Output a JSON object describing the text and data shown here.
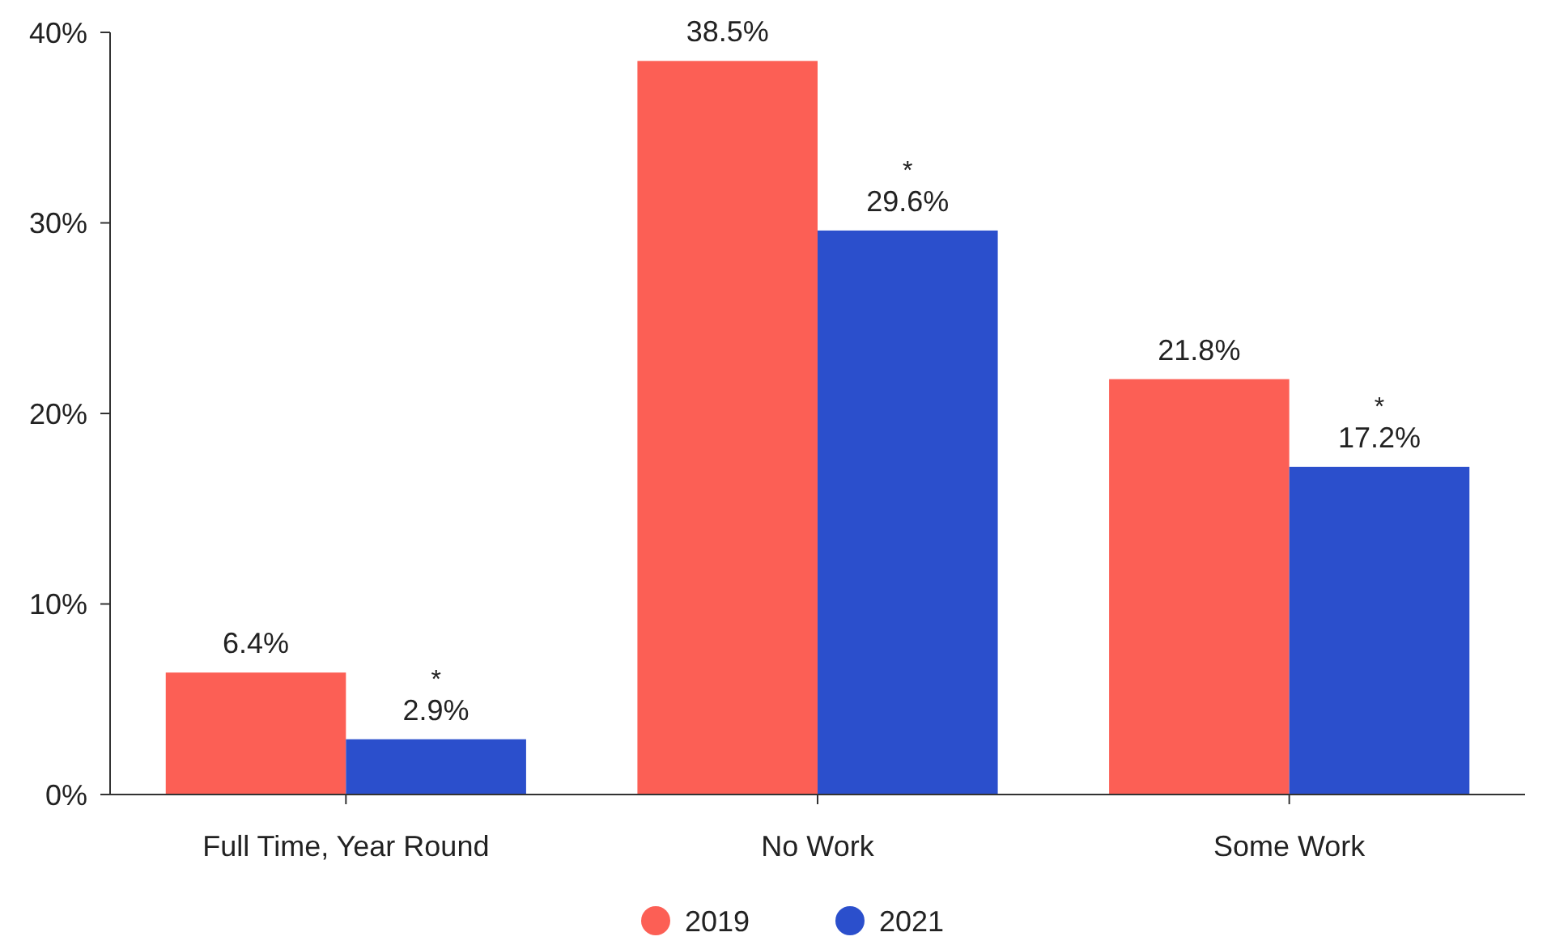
{
  "chart_data": {
    "type": "bar",
    "categories": [
      "Full Time, Year Round",
      "No Work",
      "Some Work"
    ],
    "series": [
      {
        "name": "2019",
        "color": "#fc5f55",
        "values": [
          6.4,
          38.5,
          21.8
        ],
        "value_labels": [
          "6.4%",
          "38.5%",
          "21.8%"
        ]
      },
      {
        "name": "2021",
        "color": "#2b4fcc",
        "values": [
          2.9,
          29.6,
          17.2
        ],
        "value_labels": [
          "*\n2.9%",
          "*\n29.6%",
          "*\n17.2%"
        ]
      }
    ],
    "ylim": [
      0,
      40
    ],
    "yticks": [
      {
        "value": 0,
        "label": "0%"
      },
      {
        "value": 10,
        "label": "10%"
      },
      {
        "value": 20,
        "label": "20%"
      },
      {
        "value": 30,
        "label": "30%"
      },
      {
        "value": 40,
        "label": "40%"
      }
    ],
    "grid": false,
    "legend": "bottom"
  }
}
